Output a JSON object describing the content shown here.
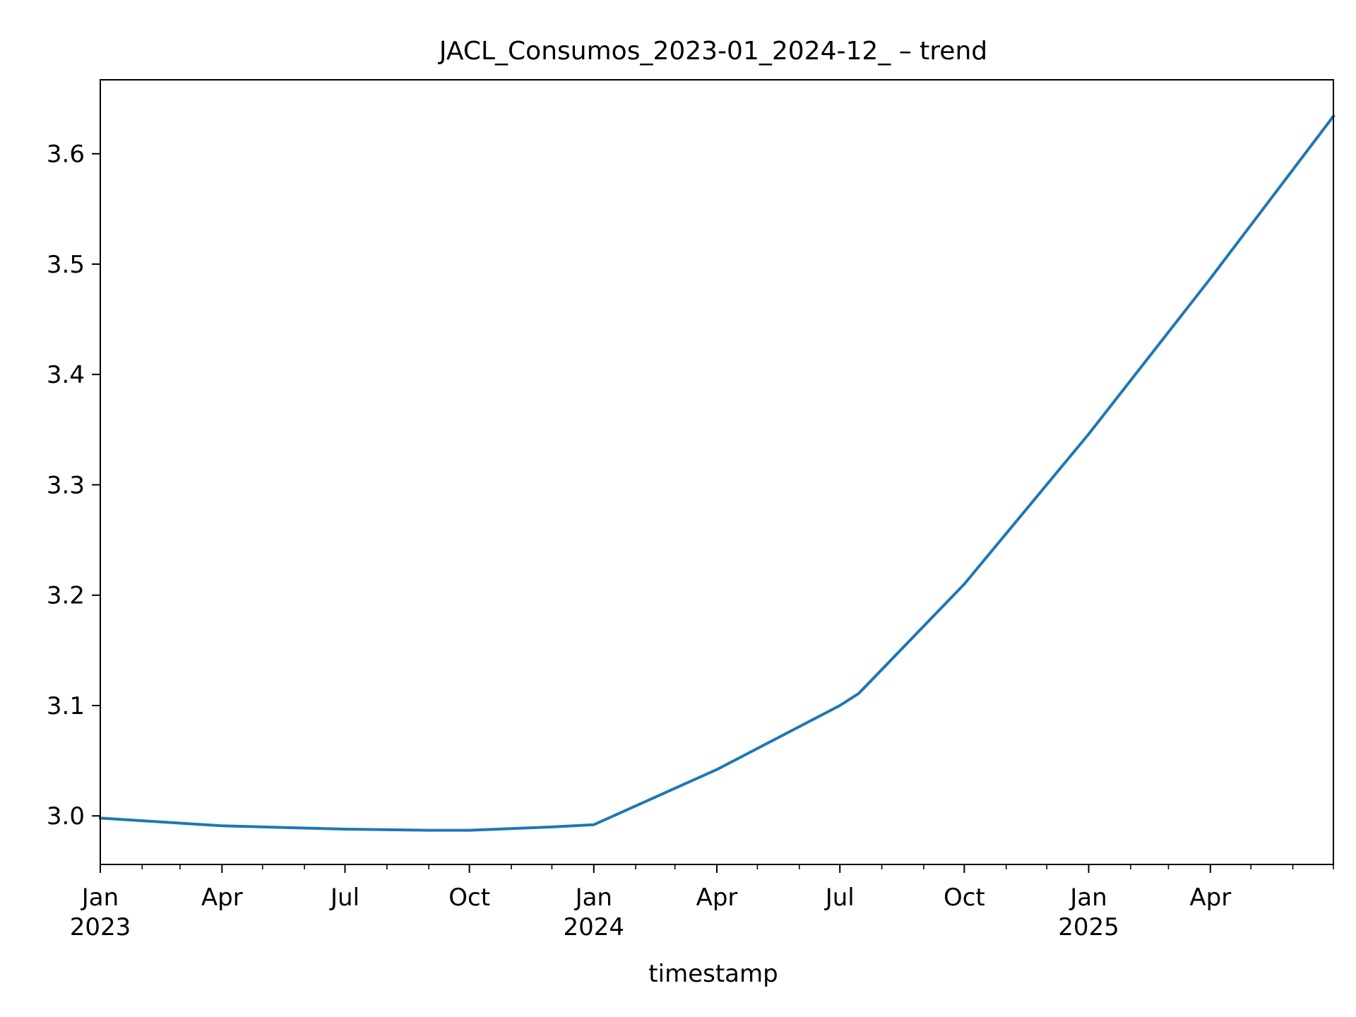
{
  "chart_data": {
    "type": "line",
    "title": "JACL_Consumos_2023-01_2024-12_ – trend",
    "xlabel": "timestamp",
    "ylabel": "",
    "xlim": [
      "2023-01-01",
      "2025-07-01"
    ],
    "ylim": [
      2.956,
      3.667
    ],
    "x_ticks": [
      {
        "date": "2023-01-01",
        "label": "Jan",
        "sublabel": "2023"
      },
      {
        "date": "2023-04-01",
        "label": "Apr",
        "sublabel": ""
      },
      {
        "date": "2023-07-01",
        "label": "Jul",
        "sublabel": ""
      },
      {
        "date": "2023-10-01",
        "label": "Oct",
        "sublabel": ""
      },
      {
        "date": "2024-01-01",
        "label": "Jan",
        "sublabel": "2024"
      },
      {
        "date": "2024-04-01",
        "label": "Apr",
        "sublabel": ""
      },
      {
        "date": "2024-07-01",
        "label": "Jul",
        "sublabel": ""
      },
      {
        "date": "2024-10-01",
        "label": "Oct",
        "sublabel": ""
      },
      {
        "date": "2025-01-01",
        "label": "Jan",
        "sublabel": "2025"
      },
      {
        "date": "2025-04-01",
        "label": "Apr",
        "sublabel": ""
      }
    ],
    "y_ticks": [
      3.0,
      3.1,
      3.2,
      3.3,
      3.4,
      3.5,
      3.6
    ],
    "y_tick_labels": [
      "3.0",
      "3.1",
      "3.2",
      "3.3",
      "3.4",
      "3.5",
      "3.6"
    ],
    "grid": false,
    "series": [
      {
        "color": "#1f77b4",
        "x": [
          "2023-01-01",
          "2023-04-01",
          "2023-07-01",
          "2023-09-01",
          "2023-10-01",
          "2023-12-01",
          "2024-01-01",
          "2024-04-01",
          "2024-07-01",
          "2024-07-15",
          "2024-10-01",
          "2025-01-01",
          "2025-04-01",
          "2025-07-01"
        ],
        "y": [
          2.998,
          2.991,
          2.988,
          2.987,
          2.987,
          2.99,
          2.992,
          3.042,
          3.1,
          3.111,
          3.21,
          3.346,
          3.487,
          3.634
        ]
      }
    ]
  }
}
